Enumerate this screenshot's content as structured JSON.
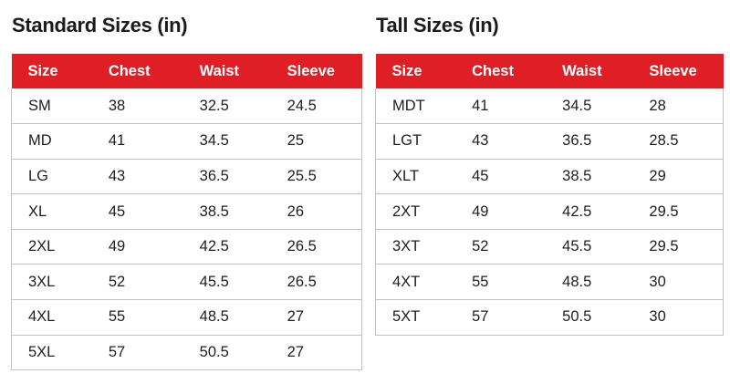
{
  "colors": {
    "header-bg": "#e01e26",
    "header-text": "#ffffff",
    "border": "#c3c3c3",
    "text": "#1e1e1e",
    "title": "#1b1b1b",
    "page-bg": "#ffffff"
  },
  "chart_data": [
    {
      "type": "table",
      "title": "Standard Sizes (in)",
      "columns": [
        "Size",
        "Chest",
        "Waist",
        "Sleeve"
      ],
      "rows": [
        [
          "SM",
          "38",
          "32.5",
          "24.5"
        ],
        [
          "MD",
          "41",
          "34.5",
          "25"
        ],
        [
          "LG",
          "43",
          "36.5",
          "25.5"
        ],
        [
          "XL",
          "45",
          "38.5",
          "26"
        ],
        [
          "2XL",
          "49",
          "42.5",
          "26.5"
        ],
        [
          "3XL",
          "52",
          "45.5",
          "26.5"
        ],
        [
          "4XL",
          "55",
          "48.5",
          "27"
        ],
        [
          "5XL",
          "57",
          "50.5",
          "27"
        ]
      ]
    },
    {
      "type": "table",
      "title": "Tall Sizes (in)",
      "columns": [
        "Size",
        "Chest",
        "Waist",
        "Sleeve"
      ],
      "rows": [
        [
          "MDT",
          "41",
          "34.5",
          "28"
        ],
        [
          "LGT",
          "43",
          "36.5",
          "28.5"
        ],
        [
          "XLT",
          "45",
          "38.5",
          "29"
        ],
        [
          "2XT",
          "49",
          "42.5",
          "29.5"
        ],
        [
          "3XT",
          "52",
          "45.5",
          "29.5"
        ],
        [
          "4XT",
          "55",
          "48.5",
          "30"
        ],
        [
          "5XT",
          "57",
          "50.5",
          "30"
        ]
      ]
    }
  ]
}
